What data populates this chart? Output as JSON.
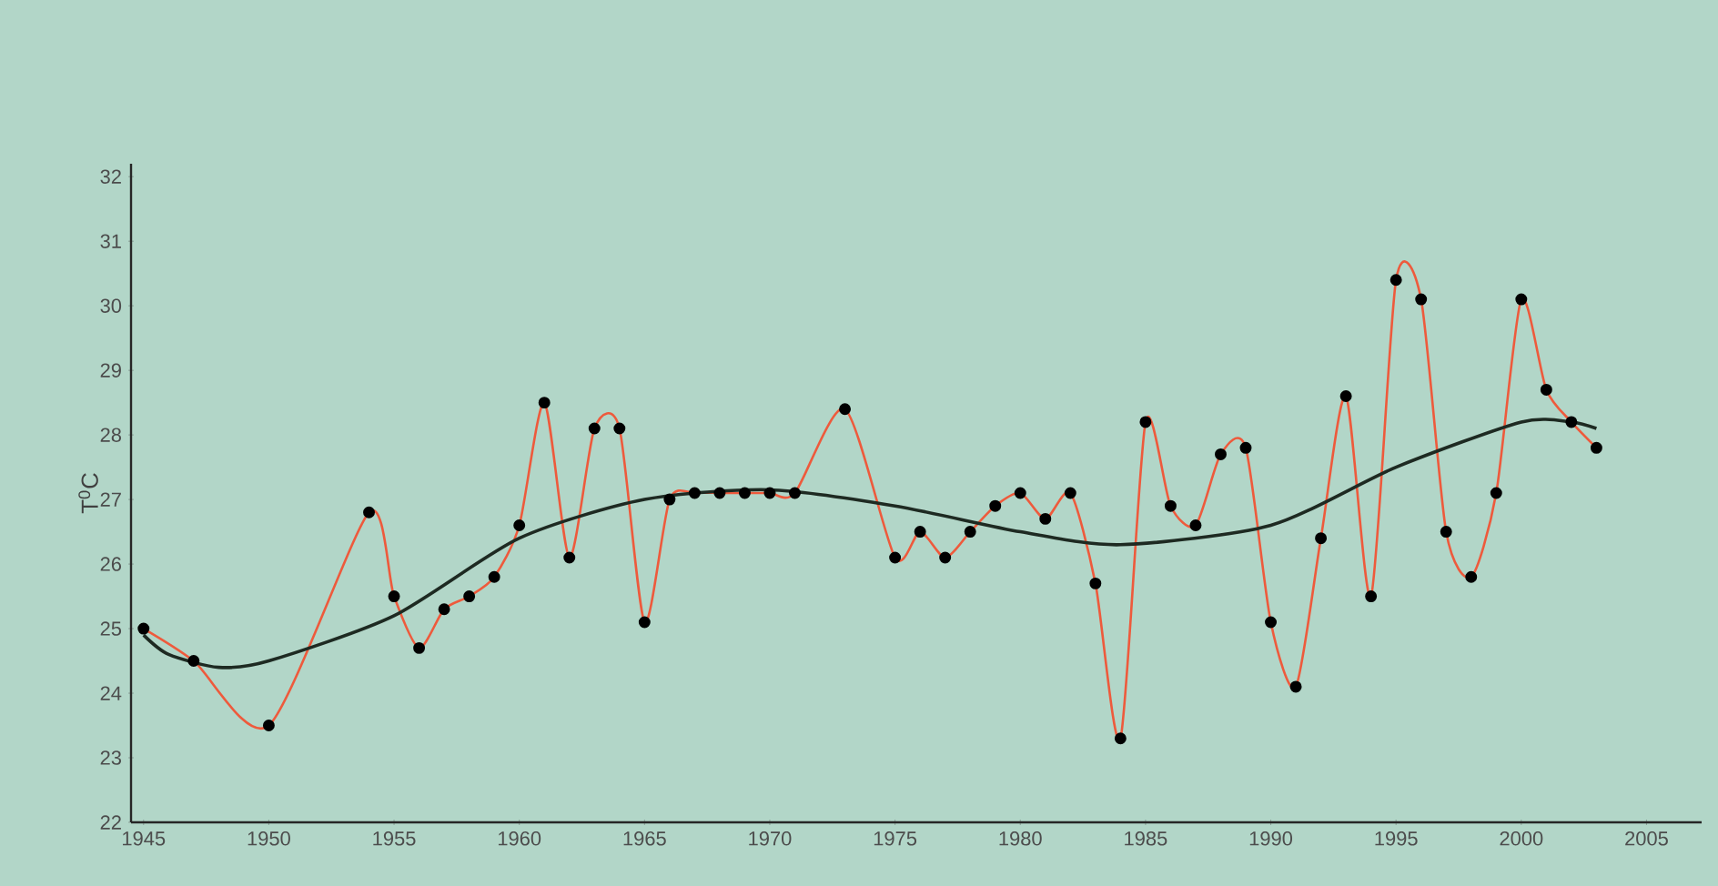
{
  "chart_data": {
    "type": "line",
    "ylabel": "T$^{0}$C",
    "xlim": [
      1944.5,
      2007.2
    ],
    "ylim": [
      22,
      32.2
    ],
    "xticks": [
      1945,
      1950,
      1955,
      1960,
      1965,
      1970,
      1975,
      1980,
      1985,
      1990,
      1995,
      2000,
      2005
    ],
    "yticks": [
      22,
      23,
      24,
      25,
      26,
      27,
      28,
      29,
      30,
      31,
      32
    ],
    "grid": false,
    "marker": "circle",
    "line_style": "solid",
    "series": [
      {
        "color": "#ee5a3c",
        "x": [
          1945,
          1947,
          1950,
          1954,
          1955,
          1956,
          1957,
          1958,
          1959,
          1960,
          1961,
          1962,
          1963,
          1964,
          1965,
          1966,
          1967,
          1968,
          1969,
          1970,
          1971,
          1973,
          1975,
          1976,
          1977,
          1978,
          1979,
          1980,
          1981,
          1982,
          1983,
          1984,
          1985,
          1986,
          1987,
          1988,
          1989,
          1990,
          1991,
          1992,
          1993,
          1994,
          1995,
          1996,
          1997,
          1998,
          1999,
          2000,
          2001,
          2002,
          2003
        ],
        "values": [
          25.0,
          24.5,
          23.5,
          26.8,
          25.5,
          24.7,
          25.3,
          25.5,
          25.8,
          26.6,
          28.5,
          26.1,
          28.1,
          28.1,
          25.1,
          27.0,
          27.1,
          27.1,
          27.1,
          27.1,
          27.1,
          28.4,
          26.1,
          26.5,
          26.1,
          26.5,
          26.9,
          27.1,
          26.7,
          27.1,
          25.7,
          23.3,
          28.2,
          26.9,
          26.6,
          27.7,
          27.8,
          25.1,
          24.1,
          26.4,
          28.6,
          25.5,
          30.4,
          30.1,
          26.5,
          25.8,
          27.1,
          30.1,
          28.7,
          28.2,
          27.8
        ]
      },
      {
        "type": "line",
        "color": "#1e2a22",
        "marker": "none",
        "x": [
          1945,
          1946,
          1948,
          1950,
          1955,
          1960,
          1965,
          1970,
          1975,
          1980,
          1984,
          1990,
          1995,
          2000,
          2002,
          2003
        ],
        "values": [
          24.9,
          24.6,
          24.4,
          24.5,
          25.2,
          26.4,
          27.0,
          27.15,
          26.9,
          26.5,
          26.3,
          26.6,
          27.5,
          28.2,
          28.2,
          28.1
        ]
      }
    ]
  }
}
